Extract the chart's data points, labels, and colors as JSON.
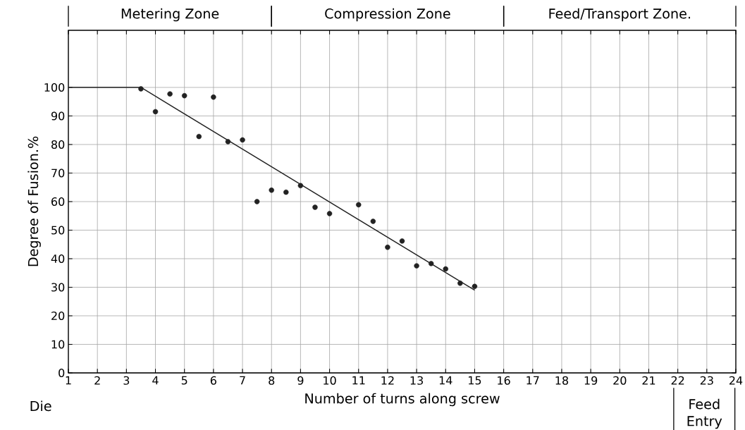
{
  "chart_data": {
    "type": "scatter",
    "xlabel": "Number of turns along screw",
    "ylabel": "Degree of Fusion.%",
    "xlim": [
      1,
      24
    ],
    "ylim": [
      0,
      120
    ],
    "xticks": [
      1,
      2,
      3,
      4,
      5,
      6,
      7,
      8,
      9,
      10,
      11,
      12,
      13,
      14,
      15,
      16,
      17,
      18,
      19,
      20,
      21,
      22,
      23,
      24
    ],
    "yticks": [
      0,
      10,
      20,
      30,
      40,
      50,
      60,
      70,
      80,
      90,
      100
    ],
    "grid": true,
    "marker": "circle",
    "annotations": [
      "Metering Zone",
      "Compression Zone",
      "Feed/Transport Zone.",
      "Die",
      "Feed Entry"
    ],
    "series": [
      {
        "color": "#222222",
        "x": [
          3.5,
          4,
          4.5,
          5,
          5.5,
          6,
          6.5,
          7,
          7.5,
          8,
          8.5,
          9,
          9.5,
          10,
          11,
          11.5,
          12,
          12.5,
          13,
          13.5,
          14,
          14.5,
          15
        ],
        "values": [
          99.5,
          91.5,
          97.7,
          97.1,
          82.8,
          96.6,
          81,
          81.6,
          60,
          64,
          63.3,
          65.6,
          58,
          55.8,
          58.9,
          53.1,
          44,
          46.2,
          37.5,
          38.3,
          36.4,
          31.4,
          30.3
        ]
      },
      {
        "type": "line",
        "marker": "none",
        "color": "#222222",
        "x": [
          1,
          3.5,
          15
        ],
        "values": [
          100,
          100,
          29
        ]
      }
    ]
  }
}
